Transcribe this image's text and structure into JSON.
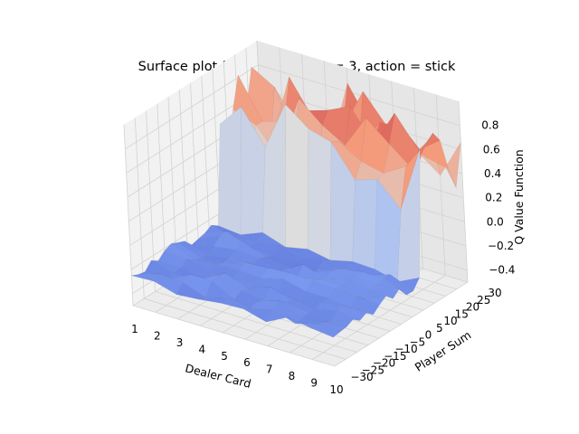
{
  "chart_data": {
    "type": "surface3d",
    "title": "Surface plot for special cards = 3, action = stick",
    "xlabel": "Dealer Card",
    "ylabel": "Player Sum",
    "zlabel": "Q Value Function",
    "x_ticks": [
      "1",
      "2",
      "3",
      "4",
      "5",
      "6",
      "7",
      "8",
      "9",
      "10"
    ],
    "y_ticks": [
      "−30",
      "−25",
      "−20",
      "−15",
      "−10",
      "−5",
      "0",
      "5",
      "10",
      "15",
      "20",
      "25",
      "30"
    ],
    "z_ticks": [
      "−0.4",
      "−0.2",
      "0.0",
      "0.2",
      "0.4",
      "0.6",
      "0.8"
    ],
    "xlim": [
      1,
      10
    ],
    "ylim": [
      -30,
      30
    ],
    "zlim": [
      -0.5,
      1.0
    ],
    "colormap": "coolwarm",
    "grid": true,
    "description_of_surface": {
      "low_region_player_sum_max": 10,
      "low_plateau_q": -0.25,
      "high_region_player_sum_min": 11,
      "high_plateau_q_range": [
        0.2,
        0.9
      ]
    }
  }
}
